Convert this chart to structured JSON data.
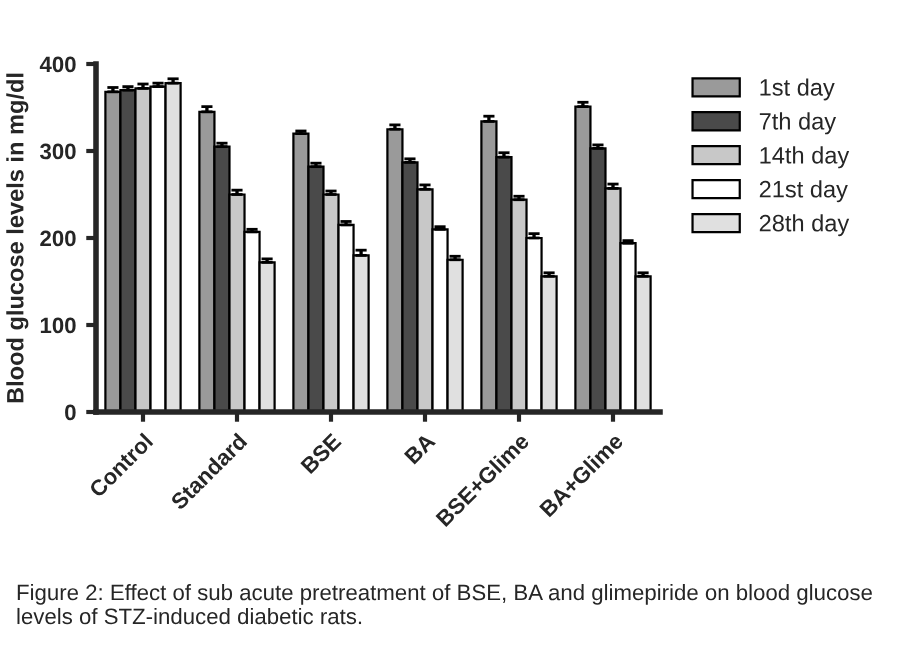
{
  "chart_data": {
    "type": "bar",
    "ylabel": "Blood glucose levels in mg/dl",
    "categories": [
      "Control",
      "Standard",
      "BSE",
      "BA",
      "BSE+Glime",
      "BA+Glime"
    ],
    "series": [
      {
        "name": "1st day",
        "color": "#9a9a9a",
        "values": [
          368,
          345,
          320,
          325,
          334,
          351
        ],
        "errors": [
          5,
          6,
          3,
          5,
          6,
          5
        ]
      },
      {
        "name": "7th day",
        "color": "#4a4a4a",
        "values": [
          370,
          305,
          282,
          287,
          293,
          303
        ],
        "errors": [
          4,
          4,
          4,
          4,
          5,
          4
        ]
      },
      {
        "name": "14th day",
        "color": "#c8c8c8",
        "values": [
          372,
          250,
          250,
          256,
          244,
          257
        ],
        "errors": [
          5,
          5,
          4,
          5,
          4,
          5
        ]
      },
      {
        "name": "21st day",
        "color": "#ffffff",
        "values": [
          374,
          207,
          215,
          210,
          200,
          194
        ],
        "errors": [
          4,
          3,
          4,
          3,
          5,
          3
        ]
      },
      {
        "name": "28th day",
        "color": "#e0e0e0",
        "values": [
          378,
          172,
          180,
          175,
          156,
          156
        ],
        "errors": [
          5,
          4,
          6,
          4,
          4,
          4
        ]
      }
    ],
    "ylim": [
      0,
      400
    ],
    "yticks": [
      0,
      100,
      200,
      300,
      400
    ],
    "grid": false,
    "legend": "top right",
    "annotations": [
      "Figure 2: Effect of sub acute pretreatment of BSE, BA and glimepiride on blood glucose levels of STZ-induced diabetic rats."
    ]
  }
}
